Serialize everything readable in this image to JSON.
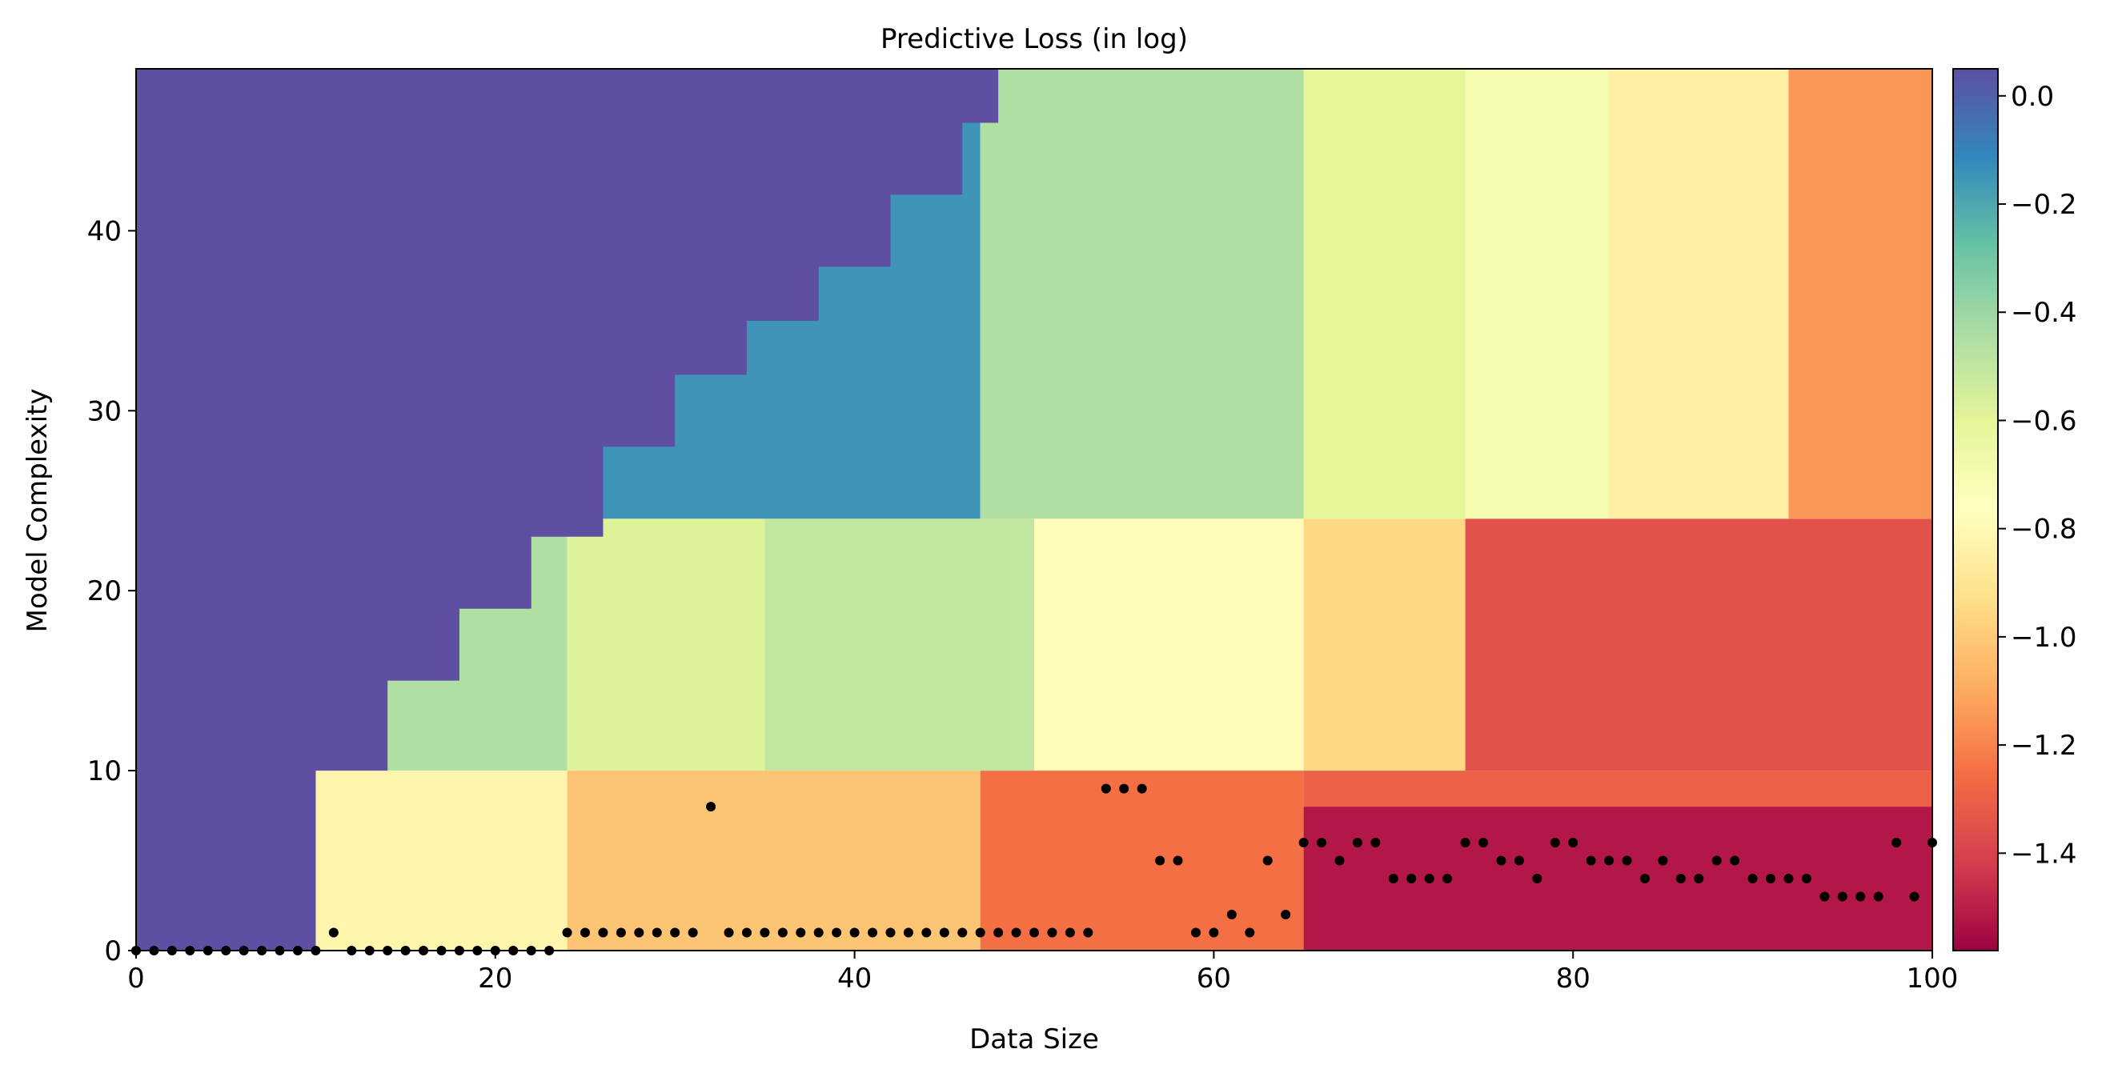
{
  "chart_data": {
    "type": "heatmap",
    "title": "Predictive Loss (in log)",
    "xlabel": "Data Size",
    "ylabel": "Model Complexity",
    "xlim": [
      0,
      100
    ],
    "ylim": [
      0,
      49
    ],
    "xticks": [
      0,
      20,
      40,
      60,
      80,
      100
    ],
    "yticks": [
      0,
      10,
      20,
      30,
      40
    ],
    "colormap": "Spectral",
    "colorbar": {
      "vmin": -1.58,
      "vmax": 0.05,
      "ticks": [
        0.0,
        -0.2,
        -0.4,
        -0.6,
        -0.8,
        -1.0,
        -1.2,
        -1.4
      ],
      "tick_labels": [
        "0.0",
        "−0.2",
        "−0.4",
        "−0.6",
        "−0.8",
        "−1.0",
        "−1.2",
        "−1.4"
      ]
    },
    "regions": [
      {
        "x": [
          0,
          10
        ],
        "y": [
          0,
          49
        ],
        "value": 0.05
      },
      {
        "x": [
          10,
          24
        ],
        "y": [
          0,
          10
        ],
        "value": -0.82
      },
      {
        "x": [
          24,
          47
        ],
        "y": [
          0,
          10
        ],
        "value": -1.02
      },
      {
        "x": [
          47,
          65
        ],
        "y": [
          0,
          10
        ],
        "value": -1.25
      },
      {
        "x": [
          65,
          100
        ],
        "y": [
          0,
          8
        ],
        "value": -1.52
      },
      {
        "x": [
          65,
          100
        ],
        "y": [
          8,
          10
        ],
        "value": -1.3
      },
      {
        "x": [
          10,
          24
        ],
        "y": [
          10,
          24
        ],
        "value": -0.45
      },
      {
        "x": [
          24,
          35
        ],
        "y": [
          10,
          24
        ],
        "value": -0.58
      },
      {
        "x": [
          35,
          50
        ],
        "y": [
          10,
          24
        ],
        "value": -0.5
      },
      {
        "x": [
          50,
          65
        ],
        "y": [
          10,
          24
        ],
        "value": -0.78
      },
      {
        "x": [
          65,
          74
        ],
        "y": [
          10,
          24
        ],
        "value": -0.95
      },
      {
        "x": [
          74,
          100
        ],
        "y": [
          10,
          24
        ],
        "value": -1.35
      },
      {
        "x": [
          24,
          47
        ],
        "y": [
          24,
          49
        ],
        "value": -0.15
      },
      {
        "x": [
          47,
          65
        ],
        "y": [
          24,
          49
        ],
        "value": -0.45
      },
      {
        "x": [
          65,
          74
        ],
        "y": [
          24,
          49
        ],
        "value": -0.6
      },
      {
        "x": [
          74,
          82
        ],
        "y": [
          24,
          49
        ],
        "value": -0.7
      },
      {
        "x": [
          82,
          92
        ],
        "y": [
          24,
          49
        ],
        "value": -0.85
      },
      {
        "x": [
          92,
          100
        ],
        "y": [
          24,
          49
        ],
        "value": -1.15
      }
    ],
    "masked_region": {
      "description_value": 0.05,
      "boundary": [
        [
          10,
          10
        ],
        [
          14,
          15
        ],
        [
          18,
          19
        ],
        [
          22,
          23
        ],
        [
          26,
          28
        ],
        [
          30,
          32
        ],
        [
          34,
          35
        ],
        [
          38,
          38
        ],
        [
          42,
          42
        ],
        [
          46,
          46
        ],
        [
          48,
          49
        ]
      ]
    },
    "points": [
      {
        "x": 0,
        "y": 0
      },
      {
        "x": 1,
        "y": 0
      },
      {
        "x": 2,
        "y": 0
      },
      {
        "x": 3,
        "y": 0
      },
      {
        "x": 4,
        "y": 0
      },
      {
        "x": 5,
        "y": 0
      },
      {
        "x": 6,
        "y": 0
      },
      {
        "x": 7,
        "y": 0
      },
      {
        "x": 8,
        "y": 0
      },
      {
        "x": 9,
        "y": 0
      },
      {
        "x": 10,
        "y": 0
      },
      {
        "x": 11,
        "y": 1
      },
      {
        "x": 12,
        "y": 0
      },
      {
        "x": 13,
        "y": 0
      },
      {
        "x": 14,
        "y": 0
      },
      {
        "x": 15,
        "y": 0
      },
      {
        "x": 16,
        "y": 0
      },
      {
        "x": 17,
        "y": 0
      },
      {
        "x": 18,
        "y": 0
      },
      {
        "x": 19,
        "y": 0
      },
      {
        "x": 20,
        "y": 0
      },
      {
        "x": 21,
        "y": 0
      },
      {
        "x": 22,
        "y": 0
      },
      {
        "x": 23,
        "y": 0
      },
      {
        "x": 24,
        "y": 1
      },
      {
        "x": 25,
        "y": 1
      },
      {
        "x": 26,
        "y": 1
      },
      {
        "x": 27,
        "y": 1
      },
      {
        "x": 28,
        "y": 1
      },
      {
        "x": 29,
        "y": 1
      },
      {
        "x": 30,
        "y": 1
      },
      {
        "x": 31,
        "y": 1
      },
      {
        "x": 32,
        "y": 8
      },
      {
        "x": 33,
        "y": 1
      },
      {
        "x": 34,
        "y": 1
      },
      {
        "x": 35,
        "y": 1
      },
      {
        "x": 36,
        "y": 1
      },
      {
        "x": 37,
        "y": 1
      },
      {
        "x": 38,
        "y": 1
      },
      {
        "x": 39,
        "y": 1
      },
      {
        "x": 40,
        "y": 1
      },
      {
        "x": 41,
        "y": 1
      },
      {
        "x": 42,
        "y": 1
      },
      {
        "x": 43,
        "y": 1
      },
      {
        "x": 44,
        "y": 1
      },
      {
        "x": 45,
        "y": 1
      },
      {
        "x": 46,
        "y": 1
      },
      {
        "x": 47,
        "y": 1
      },
      {
        "x": 48,
        "y": 1
      },
      {
        "x": 49,
        "y": 1
      },
      {
        "x": 50,
        "y": 1
      },
      {
        "x": 51,
        "y": 1
      },
      {
        "x": 52,
        "y": 1
      },
      {
        "x": 53,
        "y": 1
      },
      {
        "x": 54,
        "y": 9
      },
      {
        "x": 55,
        "y": 9
      },
      {
        "x": 56,
        "y": 9
      },
      {
        "x": 57,
        "y": 5
      },
      {
        "x": 58,
        "y": 5
      },
      {
        "x": 59,
        "y": 1
      },
      {
        "x": 60,
        "y": 1
      },
      {
        "x": 61,
        "y": 2
      },
      {
        "x": 62,
        "y": 1
      },
      {
        "x": 63,
        "y": 5
      },
      {
        "x": 64,
        "y": 2
      },
      {
        "x": 65,
        "y": 6
      },
      {
        "x": 66,
        "y": 6
      },
      {
        "x": 67,
        "y": 5
      },
      {
        "x": 68,
        "y": 6
      },
      {
        "x": 69,
        "y": 6
      },
      {
        "x": 70,
        "y": 4
      },
      {
        "x": 71,
        "y": 4
      },
      {
        "x": 72,
        "y": 4
      },
      {
        "x": 73,
        "y": 4
      },
      {
        "x": 74,
        "y": 6
      },
      {
        "x": 75,
        "y": 6
      },
      {
        "x": 76,
        "y": 5
      },
      {
        "x": 77,
        "y": 5
      },
      {
        "x": 78,
        "y": 4
      },
      {
        "x": 79,
        "y": 6
      },
      {
        "x": 80,
        "y": 6
      },
      {
        "x": 81,
        "y": 5
      },
      {
        "x": 82,
        "y": 5
      },
      {
        "x": 83,
        "y": 5
      },
      {
        "x": 84,
        "y": 4
      },
      {
        "x": 85,
        "y": 5
      },
      {
        "x": 86,
        "y": 4
      },
      {
        "x": 87,
        "y": 4
      },
      {
        "x": 88,
        "y": 5
      },
      {
        "x": 89,
        "y": 5
      },
      {
        "x": 90,
        "y": 4
      },
      {
        "x": 91,
        "y": 4
      },
      {
        "x": 92,
        "y": 4
      },
      {
        "x": 93,
        "y": 4
      },
      {
        "x": 94,
        "y": 3
      },
      {
        "x": 95,
        "y": 3
      },
      {
        "x": 96,
        "y": 3
      },
      {
        "x": 97,
        "y": 3
      },
      {
        "x": 98,
        "y": 6
      },
      {
        "x": 99,
        "y": 3
      },
      {
        "x": 100,
        "y": 6
      }
    ]
  }
}
